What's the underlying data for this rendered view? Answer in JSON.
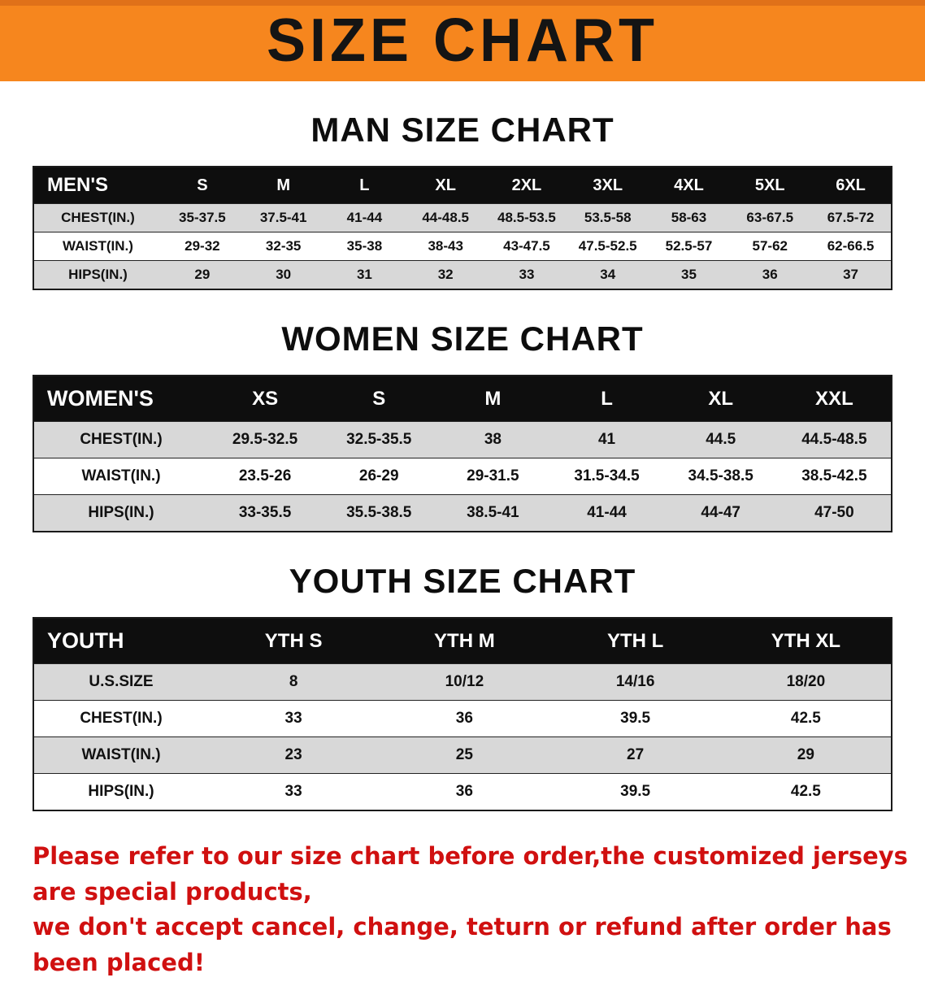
{
  "banner": {
    "title": "SIZE CHART"
  },
  "colors": {
    "banner_orange": "#F6861E",
    "table_header_black": "#0E0E0E",
    "row_stripe_gray": "#D8D8D8",
    "footer_red": "#D01010"
  },
  "sections": [
    {
      "heading": "MAN SIZE CHART",
      "table": {
        "header": [
          "MEN'S",
          "S",
          "M",
          "L",
          "XL",
          "2XL",
          "3XL",
          "4XL",
          "5XL",
          "6XL"
        ],
        "rows": [
          [
            "CHEST(IN.)",
            "35-37.5",
            "37.5-41",
            "41-44",
            "44-48.5",
            "48.5-53.5",
            "53.5-58",
            "58-63",
            "63-67.5",
            "67.5-72"
          ],
          [
            "WAIST(IN.)",
            "29-32",
            "32-35",
            "35-38",
            "38-43",
            "43-47.5",
            "47.5-52.5",
            "52.5-57",
            "57-62",
            "62-66.5"
          ],
          [
            "HIPS(IN.)",
            "29",
            "30",
            "31",
            "32",
            "33",
            "34",
            "35",
            "36",
            "37"
          ]
        ]
      }
    },
    {
      "heading": "WOMEN SIZE CHART",
      "table": {
        "header": [
          "WOMEN'S",
          "XS",
          "S",
          "M",
          "L",
          "XL",
          "XXL"
        ],
        "rows": [
          [
            "CHEST(IN.)",
            "29.5-32.5",
            "32.5-35.5",
            "38",
            "41",
            "44.5",
            "44.5-48.5"
          ],
          [
            "WAIST(IN.)",
            "23.5-26",
            "26-29",
            "29-31.5",
            "31.5-34.5",
            "34.5-38.5",
            "38.5-42.5"
          ],
          [
            "HIPS(IN.)",
            "33-35.5",
            "35.5-38.5",
            "38.5-41",
            "41-44",
            "44-47",
            "47-50"
          ]
        ]
      }
    },
    {
      "heading": "YOUTH SIZE CHART",
      "table": {
        "header": [
          "YOUTH",
          "YTH S",
          "YTH M",
          "YTH L",
          "YTH XL"
        ],
        "rows": [
          [
            "U.S.SIZE",
            "8",
            "10/12",
            "14/16",
            "18/20"
          ],
          [
            "CHEST(IN.)",
            "33",
            "36",
            "39.5",
            "42.5"
          ],
          [
            "WAIST(IN.)",
            "23",
            "25",
            "27",
            "29"
          ],
          [
            "HIPS(IN.)",
            "33",
            "36",
            "39.5",
            "42.5"
          ]
        ]
      }
    }
  ],
  "footer": {
    "line1": "Please refer to our size chart before order,the customized jerseys are special products,",
    "line2": "we don't accept cancel, change, teturn or refund after order has been placed!"
  }
}
